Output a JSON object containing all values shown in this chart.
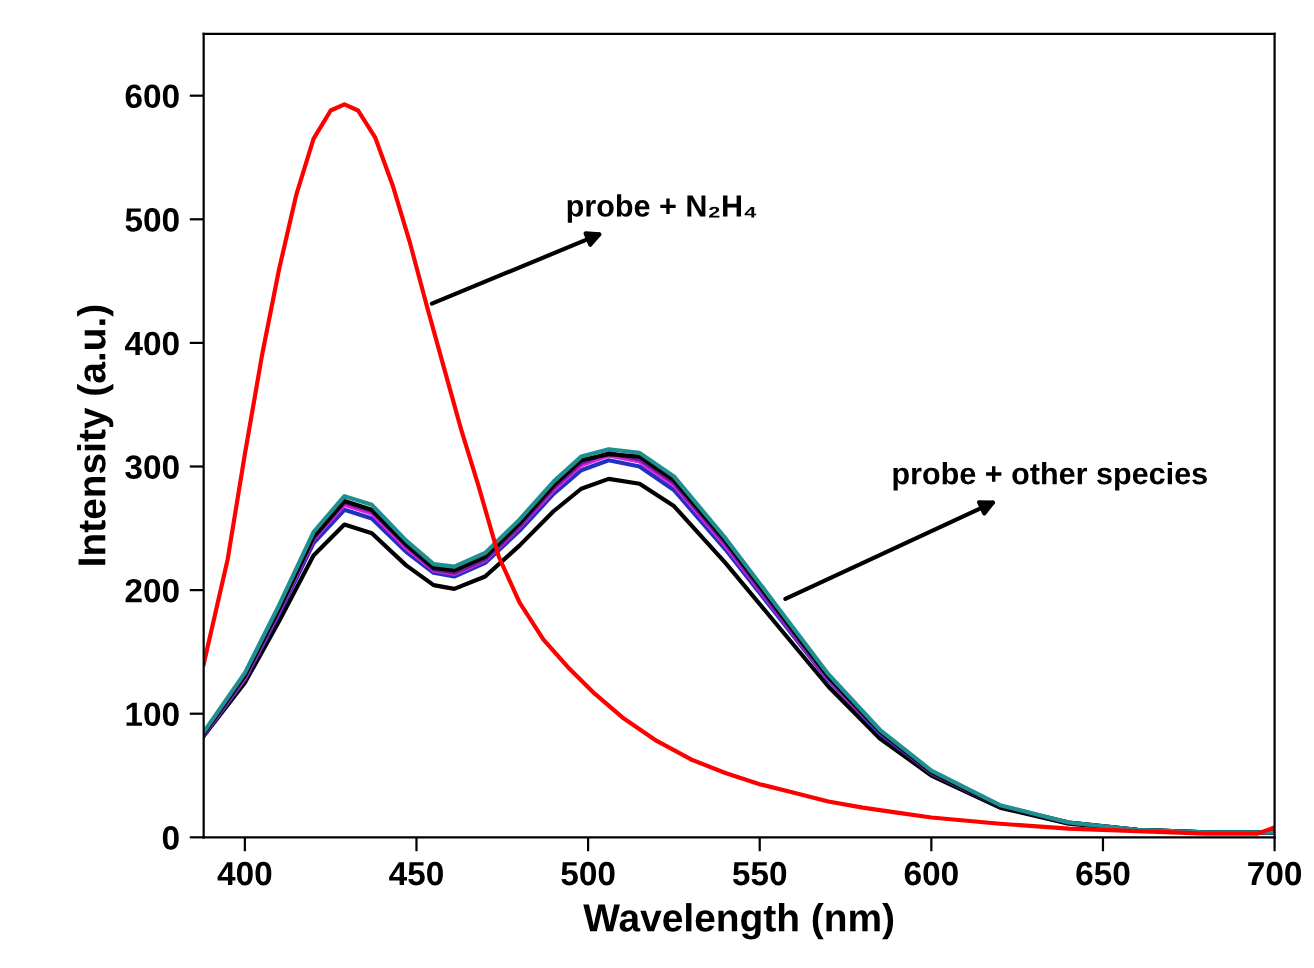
{
  "chart_data": {
    "type": "line",
    "xlabel": "Wavelength (nm)",
    "ylabel": "Intensity (a.u.)",
    "xlim": [
      388,
      700
    ],
    "xticks": [
      400,
      450,
      500,
      550,
      600,
      650,
      700
    ],
    "ylim": [
      0,
      650
    ],
    "yticks": [
      0,
      100,
      200,
      300,
      400,
      500,
      600
    ],
    "grid": false,
    "legend": false,
    "marker": "none",
    "line_style": "solid",
    "x": [
      388,
      400,
      410,
      420,
      429,
      437,
      447,
      455,
      461,
      470,
      480,
      490,
      498,
      506,
      515,
      525,
      540,
      555,
      570,
      585,
      600,
      620,
      640,
      660,
      680,
      700
    ],
    "series": [
      {
        "color": "#000000",
        "values": [
          82,
          125,
          175,
          228,
          253,
          246,
          220,
          204,
          201,
          211,
          236,
          264,
          282,
          290,
          286,
          268,
          222,
          172,
          122,
          80,
          50,
          24,
          11,
          6,
          4,
          4
        ]
      },
      {
        "color": "#2030c0",
        "values": [
          82,
          128,
          181,
          238,
          265,
          258,
          231,
          214,
          211,
          222,
          248,
          278,
          297,
          305,
          300,
          281,
          233,
          180,
          127,
          84,
          52,
          25,
          null,
          null,
          null,
          null
        ]
      },
      {
        "color": "#e020e0",
        "values": [
          83,
          129,
          183,
          241,
          269,
          262,
          234,
          216,
          213,
          224,
          251,
          281,
          301,
          309,
          304,
          285,
          236,
          182,
          128,
          85,
          null,
          null,
          null,
          null,
          null,
          null
        ]
      },
      {
        "color": "#6a1b9a",
        "values": [
          83,
          130,
          184,
          242,
          271,
          264,
          236,
          217,
          214,
          225,
          252,
          283,
          303,
          311,
          306,
          287,
          238,
          183,
          129,
          85,
          52,
          25,
          12,
          6,
          4,
          4
        ]
      },
      {
        "color": "#000000",
        "values": [
          84,
          131,
          185,
          243,
          272,
          265,
          237,
          218,
          216,
          227,
          254,
          285,
          305,
          310,
          308,
          289,
          240,
          185,
          130,
          86,
          53,
          25,
          12,
          6,
          4,
          4
        ]
      },
      {
        "color": "#1f8f8f",
        "values": [
          85,
          133,
          188,
          247,
          276,
          269,
          240,
          221,
          219,
          230,
          257,
          288,
          308,
          314,
          311,
          292,
          242,
          187,
          132,
          87,
          54,
          26,
          12,
          6,
          4,
          4
        ]
      },
      {
        "color": "#ff0000",
        "x": [
          388,
          395,
          400,
          405,
          410,
          415,
          420,
          425,
          429,
          433,
          438,
          443,
          448,
          453,
          458,
          463,
          468,
          474,
          480,
          487,
          494,
          502,
          510,
          520,
          530,
          540,
          550,
          560,
          570,
          580,
          590,
          600,
          620,
          640,
          660,
          680,
          695,
          700
        ],
        "values": [
          140,
          225,
          310,
          390,
          460,
          520,
          565,
          588,
          593,
          588,
          566,
          528,
          482,
          430,
          380,
          330,
          285,
          227,
          190,
          160,
          138,
          116,
          97,
          78,
          63,
          52,
          43,
          36,
          29,
          24,
          20,
          16,
          11,
          7,
          5,
          3,
          3,
          8
        ]
      }
    ],
    "annotations": [
      {
        "text": "probe + N₂H₄",
        "x": 453,
        "y": 430
      },
      {
        "text": "probe + other species",
        "x": 556,
        "y": 191
      }
    ]
  }
}
